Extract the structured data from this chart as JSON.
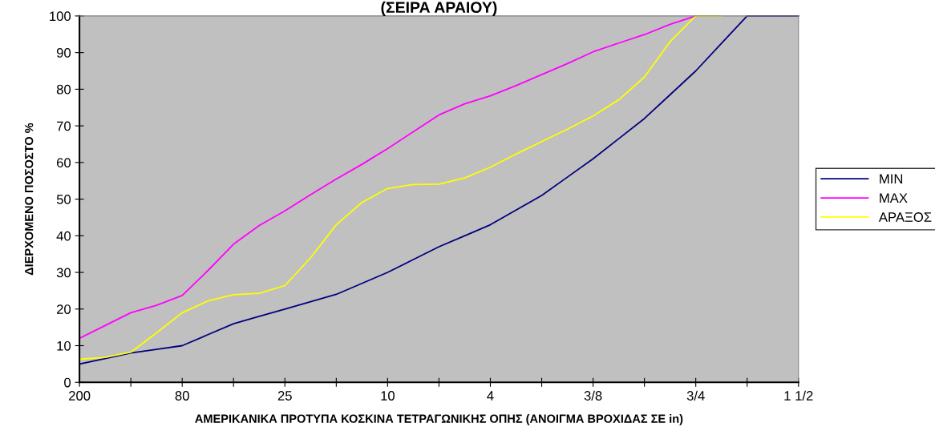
{
  "chart_data": {
    "type": "line",
    "title": "(ΣΕΙΡΑ ΑΡΑΙΟΥ)",
    "xlabel": "ΑΜΕΡΙΚΑΝΙΚΑ ΠΡΟΤΥΠΑ ΚΟΣΚΙΝΑ ΤΕΤΡΑΓΩΝΙΚΗΣ ΟΠΗΣ (ΑΝΟΙΓΜΑ ΒΡΟΧΙΔΑΣ ΣΕ in)",
    "ylabel": "ΔΙΕΡΧΟΜΕΝΟ ΠΟΣΟΣΤΟ %",
    "categories": [
      "200",
      null,
      null,
      null,
      "80",
      null,
      null,
      null,
      "25",
      null,
      null,
      null,
      "10",
      null,
      null,
      null,
      "4",
      null,
      null,
      null,
      "3/8",
      null,
      null,
      null,
      "3/4",
      null,
      null,
      null,
      "1 1/2"
    ],
    "ylim": [
      0,
      100
    ],
    "yticks": [
      0,
      10,
      20,
      30,
      40,
      50,
      60,
      70,
      80,
      90,
      100
    ],
    "grid": false,
    "legend": "right",
    "marker": "none",
    "line_style": "solid",
    "series": [
      {
        "name": "MIN",
        "color": "#000080",
        "values": [
          5,
          6.5,
          8,
          9,
          10,
          13,
          16,
          18,
          20,
          22,
          24,
          27,
          30,
          33.5,
          37,
          40,
          43,
          47,
          51,
          56,
          61,
          66.5,
          72,
          78.5,
          85,
          92.5,
          100,
          100,
          100
        ]
      },
      {
        "name": "MAX",
        "color": "#ff00ff",
        "values": [
          12,
          15.5,
          19,
          21,
          23.7,
          30.5,
          37.7,
          42.8,
          46.8,
          51.2,
          55.5,
          59.5,
          63.8,
          68.4,
          73,
          76,
          78.2,
          81,
          84,
          87,
          90.2,
          92.6,
          94.9,
          97.7,
          100,
          null,
          null,
          null,
          null
        ]
      },
      {
        "name": "ΑΡΑΞΟΣ",
        "color": "#ffff00",
        "values": [
          6.3,
          6.8,
          8.2,
          13.5,
          19,
          22.2,
          23.9,
          24.3,
          26.4,
          34,
          43,
          49.1,
          52.9,
          54,
          54.1,
          55.8,
          58.7,
          62.3,
          65.7,
          69.1,
          72.7,
          77.1,
          83.3,
          93,
          100,
          100,
          null,
          null,
          null
        ]
      }
    ]
  }
}
